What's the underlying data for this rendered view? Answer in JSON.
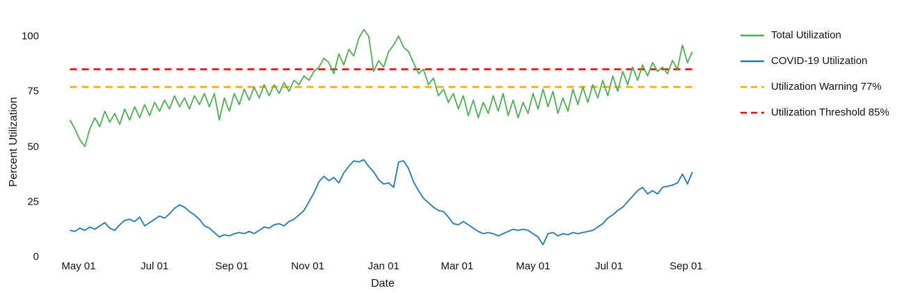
{
  "chart_data": {
    "type": "line",
    "title": "",
    "xlabel": "Date",
    "ylabel": "Percent Utilization",
    "grid": false,
    "legend_position": "right",
    "background_color": "#ffffff",
    "text_color": "#111111",
    "ylim": [
      0,
      105
    ],
    "xlim_days": [
      0,
      501
    ],
    "yticks": [
      {
        "label": "0",
        "value": 0
      },
      {
        "label": "25",
        "value": 25
      },
      {
        "label": "50",
        "value": 50
      },
      {
        "label": "75",
        "value": 75
      },
      {
        "label": "100",
        "value": 100
      }
    ],
    "xticks": [
      {
        "label": "May 01",
        "day": 7
      },
      {
        "label": "Jul 01",
        "day": 68
      },
      {
        "label": "Sep 01",
        "day": 130
      },
      {
        "label": "Nov 01",
        "day": 191
      },
      {
        "label": "Jan 01",
        "day": 252
      },
      {
        "label": "Mar 01",
        "day": 311
      },
      {
        "label": "May 01",
        "day": 372
      },
      {
        "label": "Jul 01",
        "day": 433
      },
      {
        "label": "Sep 01",
        "day": 495
      }
    ],
    "series": [
      {
        "name": "Total Utilization",
        "color": "#4caf50",
        "style": "solid",
        "day_start": 0,
        "day_step": 4,
        "values": [
          62,
          58,
          53,
          50,
          58,
          63,
          59,
          66,
          61,
          65,
          60,
          67,
          62,
          68,
          63,
          69,
          64,
          70,
          66,
          71,
          67,
          73,
          68,
          72,
          67,
          73,
          69,
          74,
          68,
          74,
          62,
          72,
          66,
          74,
          69,
          76,
          71,
          77,
          72,
          78,
          73,
          78,
          74,
          79,
          75,
          80,
          78,
          82,
          80,
          84,
          86,
          90,
          88,
          83,
          92,
          87,
          94,
          91,
          99,
          103,
          100,
          84,
          89,
          86,
          93,
          96,
          100,
          95,
          93,
          88,
          83,
          85,
          78,
          81,
          73,
          76,
          70,
          74,
          67,
          73,
          64,
          71,
          63,
          70,
          65,
          73,
          66,
          74,
          64,
          71,
          63,
          70,
          65,
          74,
          67,
          76,
          68,
          75,
          65,
          72,
          66,
          76,
          69,
          77,
          70,
          78,
          72,
          80,
          73,
          82,
          75,
          84,
          78,
          86,
          80,
          87,
          82,
          88,
          84,
          86,
          83,
          89,
          85,
          96,
          88,
          93
        ]
      },
      {
        "name": "COVID-19 Utilization",
        "color": "#1f77b4",
        "style": "solid",
        "day_start": 0,
        "day_step": 4,
        "values": [
          12,
          11.5,
          13,
          12,
          13.5,
          12.5,
          14,
          15.5,
          13,
          12,
          14.5,
          16.5,
          17,
          16,
          18,
          14,
          15.5,
          17,
          18.5,
          17.5,
          19.5,
          22,
          23.5,
          22.5,
          20.5,
          19,
          17,
          14,
          13,
          11,
          9,
          10,
          9.5,
          10.5,
          11,
          10.5,
          11.5,
          10.5,
          12,
          13.5,
          13,
          14.5,
          15,
          14,
          16,
          17,
          19,
          21,
          25,
          29,
          34,
          36.5,
          34.5,
          36,
          33.5,
          38,
          41,
          43.5,
          43,
          44,
          41,
          38.5,
          35,
          33,
          33.5,
          31.5,
          43,
          43.5,
          40,
          34,
          30,
          26.5,
          24.5,
          22.5,
          21,
          20.5,
          18,
          15,
          14.5,
          16,
          14.5,
          13,
          11.5,
          10.5,
          11,
          10.5,
          9.5,
          10.5,
          11.5,
          12.5,
          12,
          12.5,
          12,
          10.5,
          9,
          5.5,
          10.5,
          11,
          9.5,
          10.5,
          10,
          11,
          10.5,
          11,
          11.5,
          12,
          13.5,
          15,
          17.5,
          19,
          21,
          22.5,
          25,
          27.5,
          30,
          31.5,
          28.5,
          30,
          28.5,
          31.5,
          32,
          32.5,
          33.5,
          37.5,
          33,
          38.5
        ]
      }
    ],
    "ref_lines": [
      {
        "name": "Utilization Warning 77%",
        "value": 77,
        "color": "#ffa500",
        "style": "dashed"
      },
      {
        "name": "Utilization Threshold 85%",
        "value": 85,
        "color": "#ff0000",
        "style": "dashed"
      }
    ]
  }
}
